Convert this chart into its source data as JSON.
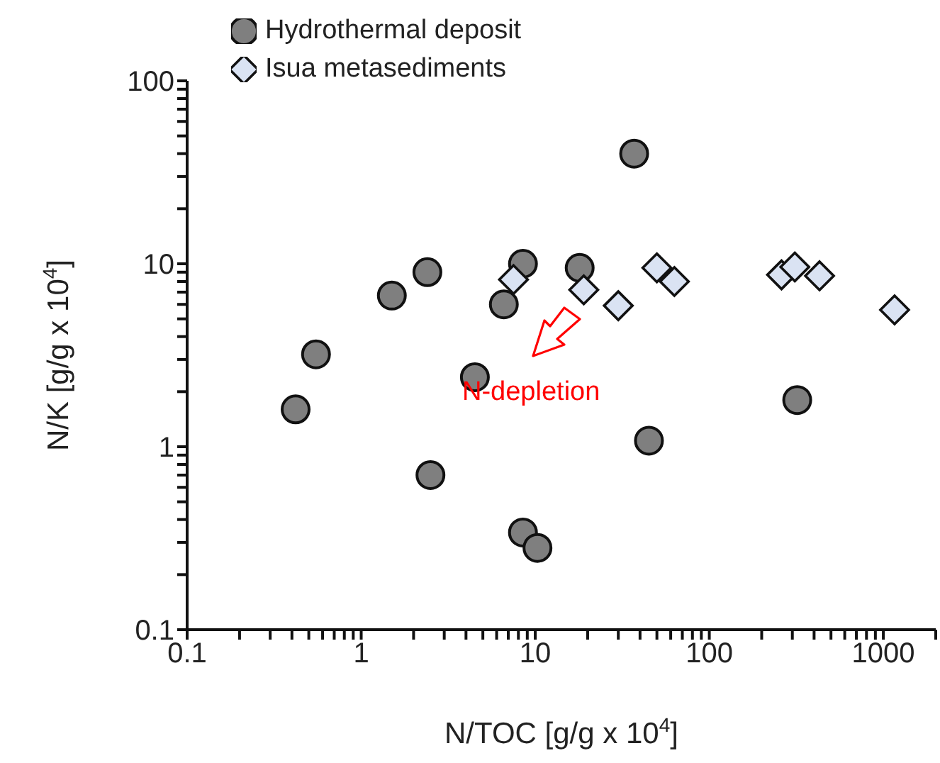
{
  "chart_data": {
    "type": "scatter",
    "xlabel": "N/TOC [g/g x 10$^{4}$]",
    "ylabel": "N/K [g/g x 10$^{4}$]",
    "log": "xy",
    "grid": false,
    "legend": "top left",
    "xlim": [
      0.1,
      2000
    ],
    "ylim": [
      0.1,
      100
    ],
    "xticks": [
      0.1,
      {
        "value": 0.2,
        "label": null
      },
      {
        "value": 0.3,
        "label": null
      },
      {
        "value": 0.4,
        "label": null
      },
      {
        "value": 0.5,
        "label": null
      },
      {
        "value": 0.6,
        "label": null
      },
      {
        "value": 0.7,
        "label": null
      },
      {
        "value": 0.8,
        "label": null
      },
      {
        "value": 0.9,
        "label": null
      },
      1,
      {
        "value": 2,
        "label": null
      },
      {
        "value": 3,
        "label": null
      },
      {
        "value": 4,
        "label": null
      },
      {
        "value": 5,
        "label": null
      },
      {
        "value": 6,
        "label": null
      },
      {
        "value": 7,
        "label": null
      },
      {
        "value": 8,
        "label": null
      },
      {
        "value": 9,
        "label": null
      },
      10,
      {
        "value": 20,
        "label": null
      },
      {
        "value": 30,
        "label": null
      },
      {
        "value": 40,
        "label": null
      },
      {
        "value": 50,
        "label": null
      },
      {
        "value": 60,
        "label": null
      },
      {
        "value": 70,
        "label": null
      },
      {
        "value": 80,
        "label": null
      },
      {
        "value": 90,
        "label": null
      },
      100,
      {
        "value": 200,
        "label": null
      },
      {
        "value": 300,
        "label": null
      },
      {
        "value": 400,
        "label": null
      },
      {
        "value": 500,
        "label": null
      },
      {
        "value": 600,
        "label": null
      },
      {
        "value": 700,
        "label": null
      },
      {
        "value": 800,
        "label": null
      },
      {
        "value": 900,
        "label": null
      },
      1000,
      {
        "value": 2000,
        "label": null
      }
    ],
    "yticks": [
      0.1,
      {
        "value": 0.2,
        "label": null
      },
      {
        "value": 0.3,
        "label": null
      },
      {
        "value": 0.4,
        "label": null
      },
      {
        "value": 0.5,
        "label": null
      },
      {
        "value": 0.6,
        "label": null
      },
      {
        "value": 0.7,
        "label": null
      },
      {
        "value": 0.8,
        "label": null
      },
      {
        "value": 0.9,
        "label": null
      },
      1,
      {
        "value": 2,
        "label": null
      },
      {
        "value": 3,
        "label": null
      },
      {
        "value": 4,
        "label": null
      },
      {
        "value": 5,
        "label": null
      },
      {
        "value": 6,
        "label": null
      },
      {
        "value": 7,
        "label": null
      },
      {
        "value": 8,
        "label": null
      },
      {
        "value": 9,
        "label": null
      },
      10,
      {
        "value": 20,
        "label": null
      },
      {
        "value": 30,
        "label": null
      },
      {
        "value": 40,
        "label": null
      },
      {
        "value": 50,
        "label": null
      },
      {
        "value": 60,
        "label": null
      },
      {
        "value": 70,
        "label": null
      },
      {
        "value": 80,
        "label": null
      },
      {
        "value": 90,
        "label": null
      },
      100
    ],
    "annotations": [
      "N-depletion"
    ],
    "series": [
      {
        "name": "Hydrothermal deposit",
        "color": "#7f7f7f",
        "marker": "circle",
        "x": [
          0.42,
          0.55,
          1.5,
          2.4,
          2.5,
          4.5,
          6.6,
          8.5,
          8.5,
          10.3,
          18,
          37,
          45,
          320
        ],
        "values": [
          1.6,
          3.2,
          6.7,
          9,
          0.7,
          2.4,
          6,
          10,
          0.34,
          0.28,
          9.5,
          40,
          1.08,
          1.8
        ]
      },
      {
        "name": "Isua metasediments",
        "color": "#dae3f3",
        "marker": "diamond",
        "x": [
          7.5,
          19,
          30,
          50,
          63,
          260,
          310,
          430,
          1160
        ],
        "values": [
          8.2,
          7.2,
          5.9,
          9.5,
          8,
          8.7,
          9.6,
          8.6,
          5.6
        ]
      }
    ]
  }
}
